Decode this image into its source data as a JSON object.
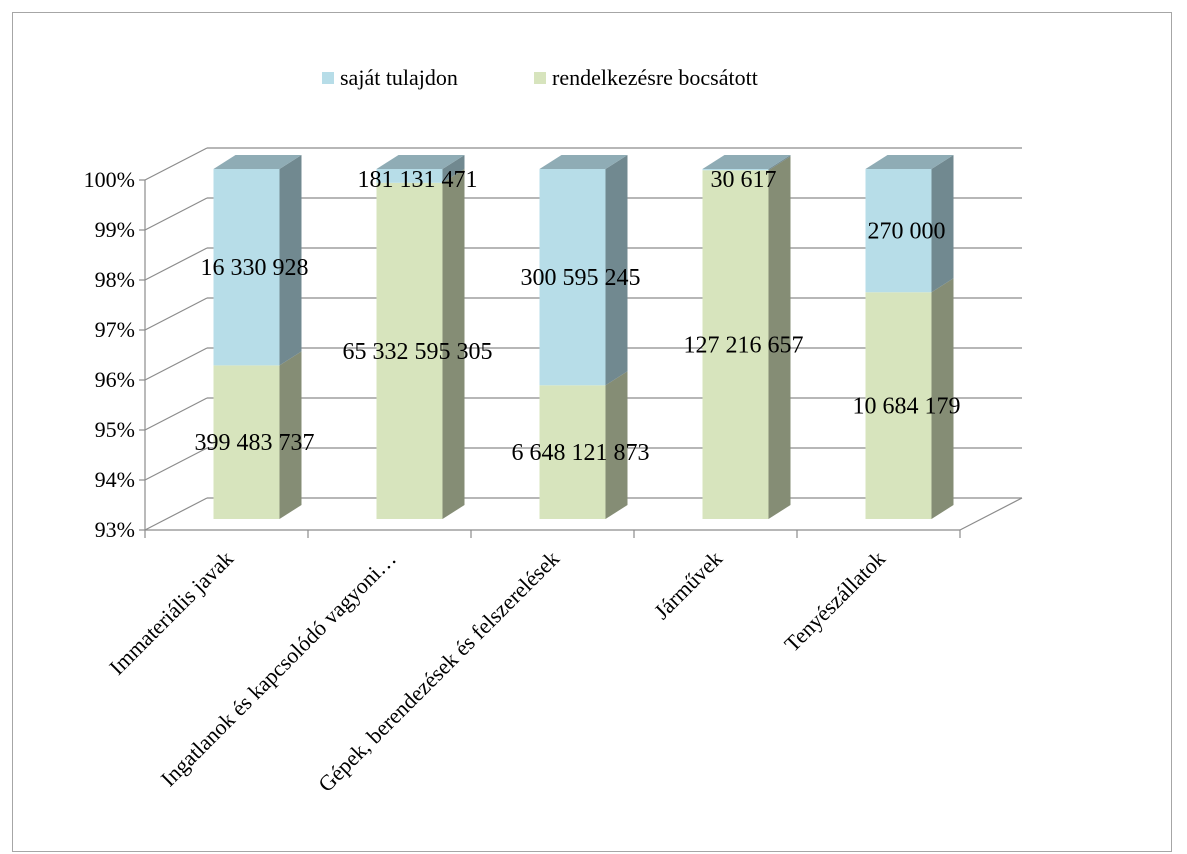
{
  "chart_data": {
    "type": "bar",
    "stacked": "percent",
    "three_d": true,
    "categories": [
      "Immateriális javak",
      "Ingatlanok és kapcsolódó vagyoni…",
      "Gépek, berendezések és felszerelések",
      "Járművek",
      "Tenyészállatok"
    ],
    "series": [
      {
        "name": "rendelkezésre bocsátott",
        "color": "#d7e4bd",
        "values": [
          399483737,
          65332595305,
          6648121873,
          127216657,
          10684179
        ],
        "labels": [
          "399 483 737",
          "65 332 595 305",
          "6 648 121 873",
          "127 216 657",
          "10 684 179"
        ]
      },
      {
        "name": "saját tulajdon",
        "color": "#b7dde8",
        "values": [
          16330928,
          181131471,
          300595245,
          30617,
          270000
        ],
        "labels": [
          "16 330 928",
          "181 131 471",
          "300 595 245",
          "30 617",
          "270 000"
        ]
      }
    ],
    "yticks": [
      "93%",
      "94%",
      "95%",
      "96%",
      "97%",
      "98%",
      "99%",
      "100%"
    ],
    "ylim": [
      93,
      100
    ],
    "grid": true,
    "legend": "top",
    "legend_order": [
      "saját tulajdon",
      "rendelkezésre bocsátott"
    ]
  }
}
